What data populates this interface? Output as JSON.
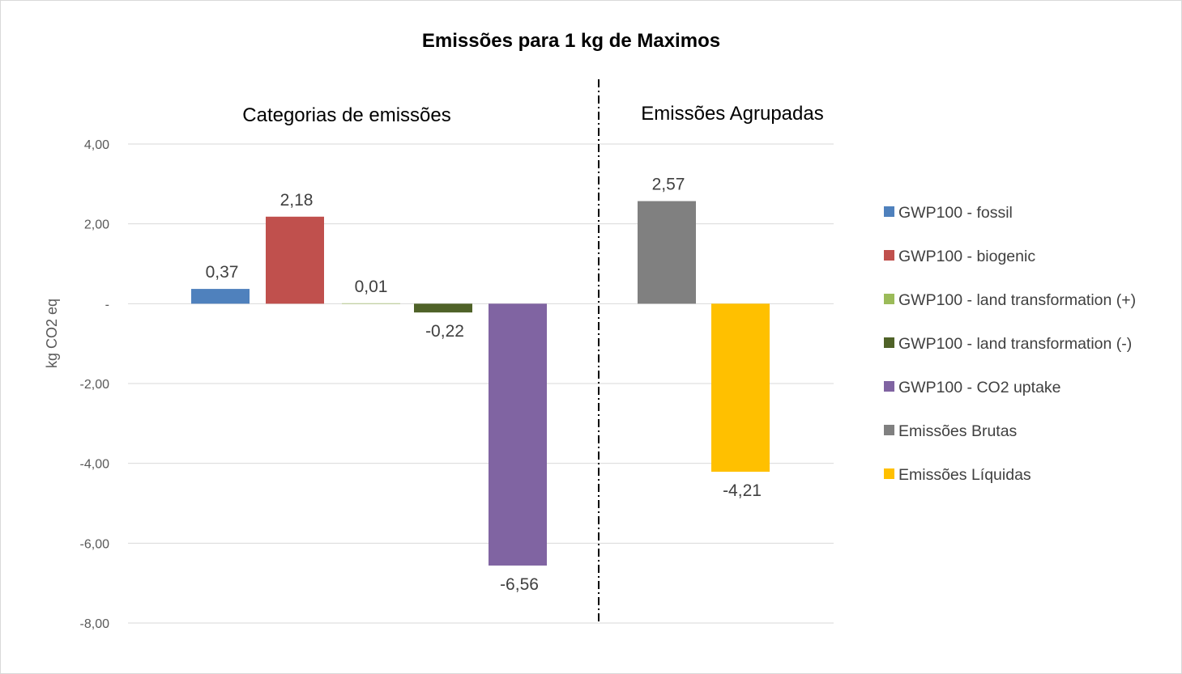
{
  "chart_data": {
    "type": "bar",
    "title": "Emissões para 1 kg de Maximos",
    "ylabel": "kg CO2 eq",
    "xlabel": "",
    "ylim": [
      -8,
      4
    ],
    "yticks": [
      {
        "value": 4,
        "label": "4,00"
      },
      {
        "value": 2,
        "label": "2,00"
      },
      {
        "value": 0,
        "label": "-"
      },
      {
        "value": -2,
        "label": "-2,00"
      },
      {
        "value": -4,
        "label": "-4,00"
      },
      {
        "value": -6,
        "label": "-6,00"
      },
      {
        "value": -8,
        "label": "-8,00"
      }
    ],
    "grid": true,
    "legend_position": "right",
    "groups": [
      {
        "label": "Categorias de emissões"
      },
      {
        "label": "Emissões Agrupadas"
      }
    ],
    "series": [
      {
        "name": "GWP100 - fossil",
        "value": 0.37,
        "label": "0,37",
        "color": "#4F81BD",
        "group": 0
      },
      {
        "name": "GWP100 - biogenic",
        "value": 2.18,
        "label": "2,18",
        "color": "#C0504D",
        "group": 0
      },
      {
        "name": "GWP100 - land transformation (+)",
        "value": 0.01,
        "label": "0,01",
        "color": "#9BBB59",
        "group": 0
      },
      {
        "name": "GWP100 - land transformation (-)",
        "value": -0.22,
        "label": "-0,22",
        "color": "#4F6228",
        "group": 0
      },
      {
        "name": "GWP100 - CO2 uptake",
        "value": -6.56,
        "label": "-6,56",
        "color": "#8064A2",
        "group": 0
      },
      {
        "name": "Emissões Brutas",
        "value": 2.57,
        "label": "2,57",
        "color": "#808080",
        "group": 1
      },
      {
        "name": "Emissões Líquidas",
        "value": -4.21,
        "label": "-4,21",
        "color": "#FFC000",
        "group": 1
      }
    ]
  }
}
